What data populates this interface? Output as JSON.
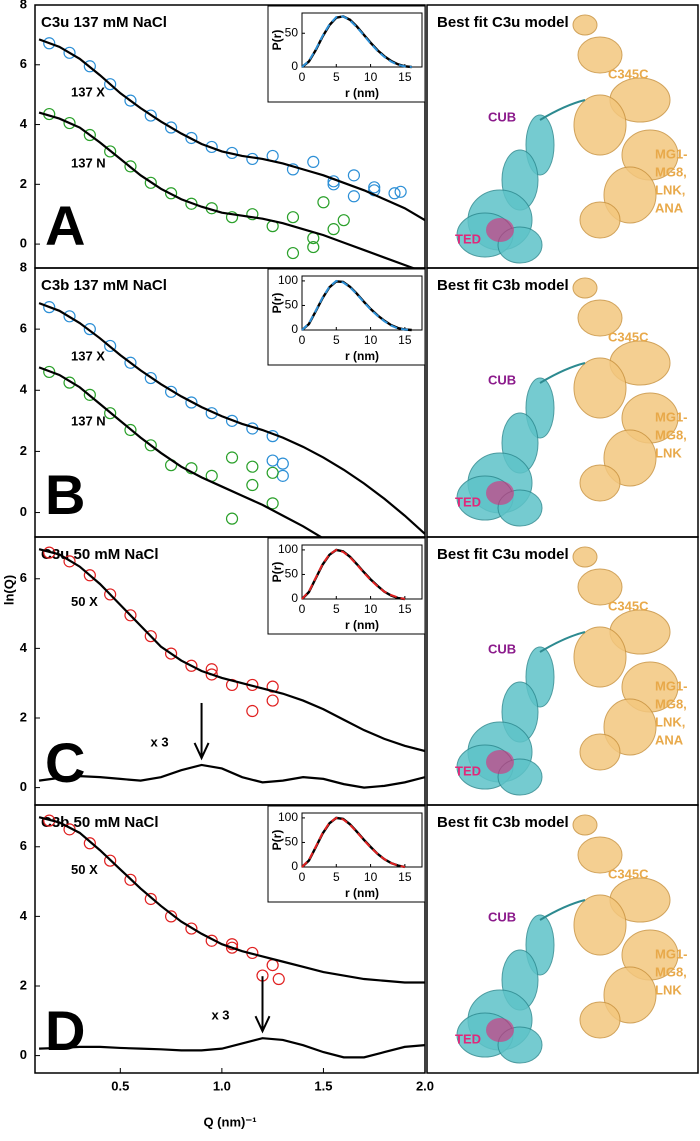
{
  "ylabel": "ln(Q)",
  "chart_data": [
    {
      "type": "scatter",
      "panel": "A",
      "title": "C3u 137 mM NaCl",
      "xlim": [
        0.08,
        2.0
      ],
      "ylim": [
        -0.8,
        8
      ],
      "yticks": [
        0,
        2,
        4,
        6,
        8
      ],
      "series": [
        {
          "name": "137 X",
          "color": "#2c8fd6",
          "x": [
            0.15,
            0.25,
            0.35,
            0.45,
            0.55,
            0.65,
            0.75,
            0.85,
            0.95,
            1.05,
            1.15,
            1.25,
            1.35,
            1.45,
            1.55,
            1.65,
            1.75,
            1.85,
            1.55,
            1.65,
            1.75,
            1.88
          ],
          "values": [
            6.72,
            6.4,
            5.95,
            5.35,
            4.8,
            4.3,
            3.9,
            3.55,
            3.25,
            3.05,
            2.85,
            2.95,
            2.5,
            2.75,
            2.1,
            2.3,
            1.8,
            1.7,
            2.0,
            1.6,
            1.9,
            1.75
          ]
        },
        {
          "name": "137 N",
          "color": "#2aa02a",
          "x": [
            0.15,
            0.25,
            0.35,
            0.45,
            0.55,
            0.65,
            0.75,
            0.85,
            0.95,
            1.05,
            1.15,
            1.25,
            1.35,
            1.45,
            1.55,
            1.45,
            1.6,
            1.5,
            1.35
          ],
          "values": [
            4.35,
            4.05,
            3.65,
            3.1,
            2.6,
            2.05,
            1.7,
            1.35,
            1.2,
            0.9,
            1.0,
            0.6,
            0.9,
            0.2,
            0.5,
            -0.1,
            0.8,
            1.4,
            -0.3
          ]
        }
      ],
      "fits": [
        {
          "color": "#000000",
          "x": [
            0.1,
            0.2,
            0.3,
            0.4,
            0.5,
            0.6,
            0.7,
            0.8,
            0.9,
            1.0,
            1.1,
            1.2,
            1.3,
            1.4,
            1.5,
            1.6,
            1.7,
            1.8,
            1.9,
            2.0
          ],
          "values": [
            6.85,
            6.6,
            6.2,
            5.65,
            5.05,
            4.55,
            4.1,
            3.7,
            3.35,
            3.1,
            2.95,
            2.85,
            2.7,
            2.5,
            2.3,
            2.05,
            1.8,
            1.5,
            1.2,
            0.8
          ]
        },
        {
          "color": "#000000",
          "x": [
            0.1,
            0.2,
            0.3,
            0.4,
            0.5,
            0.6,
            0.7,
            0.8,
            0.9,
            1.0,
            1.1,
            1.2,
            1.3,
            1.4,
            1.5,
            1.6,
            1.7,
            1.8,
            1.9,
            2.0
          ],
          "values": [
            4.4,
            4.2,
            3.9,
            3.4,
            2.85,
            2.3,
            1.85,
            1.5,
            1.25,
            1.05,
            0.95,
            0.85,
            0.7,
            0.5,
            0.3,
            0.05,
            -0.2,
            -0.45,
            -0.7,
            -0.95
          ]
        }
      ]
    },
    {
      "type": "line",
      "ylabel": "P(r)",
      "xlabel": "r (nm)",
      "xlim": [
        0,
        17.5
      ],
      "ylim": [
        0,
        80
      ],
      "xticks": [
        0,
        5,
        10,
        15
      ],
      "yticks": [
        0,
        50
      ],
      "x": [
        0,
        1,
        2,
        3,
        4,
        5,
        6,
        7,
        8,
        9,
        10,
        11,
        12,
        13,
        14,
        15,
        16
      ],
      "series": [
        {
          "color": "#000000",
          "dash": false,
          "values": [
            0,
            8,
            25,
            45,
            62,
            73,
            75,
            70,
            60,
            48,
            36,
            25,
            16,
            9,
            4,
            1,
            0
          ]
        },
        {
          "color": "#2c8fd6",
          "dash": true,
          "values": [
            0,
            9,
            26,
            46,
            63,
            74,
            75,
            69,
            59,
            47,
            35,
            24,
            15,
            8,
            3,
            1,
            0
          ]
        }
      ]
    },
    {
      "type": "scatter",
      "panel": "B",
      "title": "C3b 137 mM NaCl",
      "xlim": [
        0.08,
        2.0
      ],
      "ylim": [
        -0.8,
        8
      ],
      "yticks": [
        0,
        2,
        4,
        6,
        8
      ],
      "series": [
        {
          "name": "137 X",
          "color": "#2c8fd6",
          "x": [
            0.15,
            0.25,
            0.35,
            0.45,
            0.55,
            0.65,
            0.75,
            0.85,
            0.95,
            1.05,
            1.15,
            1.25,
            1.3,
            1.3,
            1.25
          ],
          "values": [
            6.72,
            6.42,
            6.0,
            5.45,
            4.9,
            4.4,
            3.95,
            3.6,
            3.25,
            3.0,
            2.75,
            2.5,
            1.6,
            1.2,
            1.7
          ]
        },
        {
          "name": "137 N",
          "color": "#2aa02a",
          "x": [
            0.15,
            0.25,
            0.35,
            0.45,
            0.55,
            0.65,
            0.75,
            0.85,
            0.95,
            1.05,
            1.15,
            1.25,
            1.05,
            1.15,
            1.25
          ],
          "values": [
            4.6,
            4.25,
            3.85,
            3.25,
            2.7,
            2.2,
            1.55,
            1.45,
            1.2,
            1.8,
            0.9,
            1.3,
            -0.2,
            1.5,
            0.3
          ]
        }
      ],
      "fits": [
        {
          "color": "#000000",
          "x": [
            0.1,
            0.2,
            0.3,
            0.4,
            0.5,
            0.6,
            0.7,
            0.8,
            0.9,
            1.0,
            1.1,
            1.2,
            1.3,
            1.4,
            1.5,
            1.6,
            1.7,
            1.8,
            1.9,
            2.0
          ],
          "values": [
            6.85,
            6.6,
            6.2,
            5.7,
            5.15,
            4.65,
            4.2,
            3.8,
            3.45,
            3.15,
            2.9,
            2.7,
            2.45,
            2.15,
            1.8,
            1.4,
            0.95,
            0.45,
            -0.1,
            -0.7
          ]
        },
        {
          "color": "#000000",
          "x": [
            0.1,
            0.2,
            0.3,
            0.4,
            0.5,
            0.6,
            0.7,
            0.8,
            0.9,
            1.0,
            1.1,
            1.2,
            1.3,
            1.4,
            1.5,
            1.6,
            1.7,
            1.8,
            1.9,
            2.0
          ],
          "values": [
            4.75,
            4.5,
            4.1,
            3.55,
            3.0,
            2.45,
            1.95,
            1.5,
            1.15,
            0.85,
            0.55,
            0.25,
            -0.1,
            -0.45,
            -0.85,
            -1.2,
            -1.6,
            -2.0,
            -2.4,
            -2.8
          ]
        }
      ]
    },
    {
      "type": "line",
      "ylabel": "P(r)",
      "xlabel": "r (nm)",
      "xlim": [
        0,
        17.5
      ],
      "ylim": [
        0,
        110
      ],
      "xticks": [
        0,
        5,
        10,
        15
      ],
      "yticks": [
        0,
        50,
        100
      ],
      "x": [
        0,
        1,
        2,
        3,
        4,
        5,
        6,
        7,
        8,
        9,
        10,
        11,
        12,
        13,
        14,
        15,
        16
      ],
      "series": [
        {
          "color": "#000000",
          "dash": false,
          "values": [
            0,
            12,
            38,
            65,
            87,
            99,
            98,
            88,
            74,
            58,
            43,
            30,
            19,
            10,
            4,
            1,
            0
          ]
        },
        {
          "color": "#2c8fd6",
          "dash": true,
          "values": [
            0,
            13,
            39,
            66,
            88,
            100,
            97,
            87,
            73,
            57,
            42,
            29,
            18,
            9,
            3,
            1,
            0
          ]
        }
      ]
    },
    {
      "type": "scatter",
      "panel": "C",
      "title": "C3u 50 mM NaCl",
      "xlim": [
        0.08,
        2.0
      ],
      "ylim": [
        -0.5,
        7.2
      ],
      "yticks": [
        0,
        2,
        4,
        6
      ],
      "annotation": "x 3",
      "series": [
        {
          "name": "50 X",
          "color": "#e02020",
          "x": [
            0.15,
            0.25,
            0.35,
            0.45,
            0.55,
            0.65,
            0.75,
            0.85,
            0.95,
            1.05,
            1.15,
            1.25,
            0.95,
            1.15,
            1.25
          ],
          "values": [
            6.75,
            6.5,
            6.1,
            5.55,
            4.95,
            4.35,
            3.85,
            3.5,
            3.25,
            2.95,
            2.95,
            2.5,
            3.4,
            2.2,
            2.9
          ]
        }
      ],
      "fits": [
        {
          "color": "#000000",
          "x": [
            0.1,
            0.2,
            0.3,
            0.4,
            0.5,
            0.6,
            0.7,
            0.8,
            0.9,
            1.0,
            1.1,
            1.2,
            1.3,
            1.4,
            1.5,
            1.6,
            1.7,
            1.8,
            1.9,
            2.0
          ],
          "values": [
            6.85,
            6.7,
            6.35,
            5.85,
            5.25,
            4.65,
            4.05,
            3.65,
            3.35,
            3.15,
            3.0,
            2.85,
            2.7,
            2.5,
            2.25,
            1.95,
            1.65,
            1.4,
            1.2,
            1.05
          ]
        },
        {
          "color": "#000000",
          "x": [
            0.1,
            0.2,
            0.3,
            0.4,
            0.5,
            0.6,
            0.7,
            0.8,
            0.9,
            1.0,
            1.1,
            1.2,
            1.3,
            1.4,
            1.5,
            1.6,
            1.7,
            1.8,
            1.9,
            2.0
          ],
          "values": [
            0.2,
            0.28,
            0.33,
            0.3,
            0.25,
            0.2,
            0.3,
            0.5,
            0.65,
            0.55,
            0.3,
            0.15,
            0.2,
            0.3,
            0.25,
            0.1,
            0.0,
            0.05,
            0.15,
            0.3
          ]
        }
      ]
    },
    {
      "type": "line",
      "ylabel": "P(r)",
      "xlabel": "r (nm)",
      "xlim": [
        0,
        17.5
      ],
      "ylim": [
        0,
        110
      ],
      "xticks": [
        0,
        5,
        10,
        15
      ],
      "yticks": [
        0,
        50,
        100
      ],
      "x": [
        0,
        1,
        2,
        3,
        4,
        5,
        6,
        7,
        8,
        9,
        10,
        11,
        12,
        13,
        14,
        15
      ],
      "series": [
        {
          "color": "#000000",
          "dash": false,
          "values": [
            0,
            14,
            42,
            70,
            90,
            100,
            97,
            86,
            71,
            55,
            40,
            27,
            15,
            7,
            2,
            0
          ]
        },
        {
          "color": "#e02020",
          "dash": true,
          "values": [
            0,
            15,
            43,
            71,
            91,
            100,
            96,
            85,
            70,
            54,
            39,
            26,
            15,
            8,
            3,
            0
          ]
        }
      ]
    },
    {
      "type": "scatter",
      "panel": "D",
      "title": "C3b 50 mM NaCl",
      "xlim": [
        0.08,
        2.0
      ],
      "ylim": [
        -0.5,
        7.2
      ],
      "yticks": [
        0,
        2,
        4,
        6
      ],
      "annotation": "x 3",
      "xticks": [
        0.5,
        {
          "value": 1,
          "label": "1.0"
        },
        1.5,
        {
          "value": 2,
          "label": "2.0"
        }
      ],
      "xlabel": "Q (nm)⁻¹",
      "series": [
        {
          "name": "50 X",
          "color": "#e02020",
          "x": [
            0.15,
            0.25,
            0.35,
            0.45,
            0.55,
            0.65,
            0.75,
            0.85,
            0.95,
            1.05,
            1.15,
            1.25,
            1.05,
            1.2,
            1.28
          ],
          "values": [
            6.75,
            6.5,
            6.1,
            5.6,
            5.05,
            4.5,
            4.0,
            3.65,
            3.3,
            3.1,
            2.95,
            2.6,
            3.2,
            2.3,
            2.2
          ]
        }
      ],
      "fits": [
        {
          "color": "#000000",
          "x": [
            0.1,
            0.2,
            0.3,
            0.4,
            0.5,
            0.6,
            0.7,
            0.8,
            0.9,
            1.0,
            1.1,
            1.2,
            1.3,
            1.4,
            1.5,
            1.6,
            1.7,
            1.8,
            1.9,
            2.0
          ],
          "values": [
            6.85,
            6.7,
            6.4,
            5.9,
            5.35,
            4.8,
            4.3,
            3.85,
            3.5,
            3.2,
            3.0,
            2.85,
            2.7,
            2.55,
            2.4,
            2.3,
            2.2,
            2.15,
            2.1,
            2.1
          ]
        },
        {
          "color": "#000000",
          "x": [
            0.1,
            0.2,
            0.3,
            0.4,
            0.5,
            0.6,
            0.7,
            0.8,
            0.9,
            1.0,
            1.1,
            1.2,
            1.3,
            1.4,
            1.5,
            1.6,
            1.7,
            1.8,
            1.9,
            2.0
          ],
          "values": [
            0.2,
            0.22,
            0.25,
            0.25,
            0.22,
            0.2,
            0.18,
            0.15,
            0.15,
            0.2,
            0.35,
            0.5,
            0.45,
            0.3,
            0.1,
            -0.05,
            -0.05,
            0.1,
            0.25,
            0.3
          ]
        }
      ]
    },
    {
      "type": "line",
      "ylabel": "P(r)",
      "xlabel": "r (nm)",
      "xlim": [
        0,
        17.5
      ],
      "ylim": [
        0,
        110
      ],
      "xticks": [
        0,
        5,
        10,
        15
      ],
      "yticks": [
        0,
        50,
        100
      ],
      "x": [
        0,
        1,
        2,
        3,
        4,
        5,
        6,
        7,
        8,
        9,
        10,
        11,
        12,
        13,
        14,
        15
      ],
      "series": [
        {
          "color": "#000000",
          "dash": false,
          "values": [
            0,
            13,
            40,
            68,
            89,
            100,
            98,
            87,
            72,
            56,
            41,
            27,
            16,
            8,
            3,
            0
          ]
        },
        {
          "color": "#e02020",
          "dash": true,
          "values": [
            0,
            14,
            41,
            69,
            90,
            100,
            97,
            86,
            71,
            55,
            40,
            27,
            16,
            8,
            3,
            0
          ]
        }
      ]
    }
  ],
  "models": [
    {
      "title": "Best fit C3u model",
      "c345c": "C345C",
      "cub": "CUB",
      "mg": [
        "MG1-",
        "MG8,",
        "LNK,",
        "ANA"
      ],
      "ted": "TED"
    },
    {
      "title": "Best fit C3b model",
      "c345c": "C345C",
      "cub": "CUB",
      "mg": [
        "MG1-",
        "MG8,",
        "LNK"
      ],
      "ted": "TED"
    },
    {
      "title": "Best fit C3u model",
      "c345c": "C345C",
      "cub": "CUB",
      "mg": [
        "MG1-",
        "MG8,",
        "LNK,",
        "ANA"
      ],
      "ted": "TED"
    },
    {
      "title": "Best fit C3b model",
      "c345c": "C345C",
      "cub": "CUB",
      "mg": [
        "MG1-",
        "MG8,",
        "LNK"
      ],
      "ted": "TED"
    }
  ]
}
